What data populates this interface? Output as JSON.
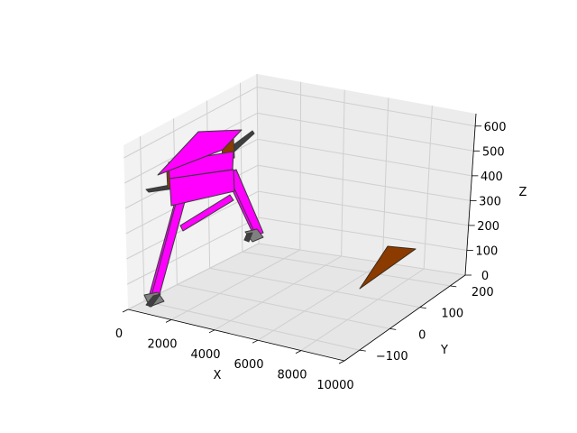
{
  "chart_data": {
    "type": "3d-polygon",
    "projection": "perspective",
    "grid": true,
    "xlabel": "X",
    "ylabel": "Y",
    "zlabel": "Z",
    "xlim": [
      0,
      10000
    ],
    "ylim": [
      -150,
      250
    ],
    "zlim": [
      0,
      650
    ],
    "xticks": [
      0,
      2000,
      4000,
      6000,
      8000,
      10000
    ],
    "yticks": [
      -100,
      0,
      100,
      200
    ],
    "zticks": [
      0,
      100,
      200,
      300,
      400,
      500,
      600
    ],
    "colors": {
      "pane_back": "#ececec",
      "pane_side": "#f2f2f2",
      "pane_floor": "#e6e6e6",
      "grid": "#cfcfcf",
      "frame": "#000000",
      "machine": "#ff00ff",
      "roof": "#ff00ff",
      "feet": "#808080",
      "dark_bar": "#3f3f3f",
      "wedge": "#8b3a00",
      "edge": "#3a3a3a"
    },
    "objects": [
      "walker-machine",
      "wedge-tool"
    ]
  }
}
